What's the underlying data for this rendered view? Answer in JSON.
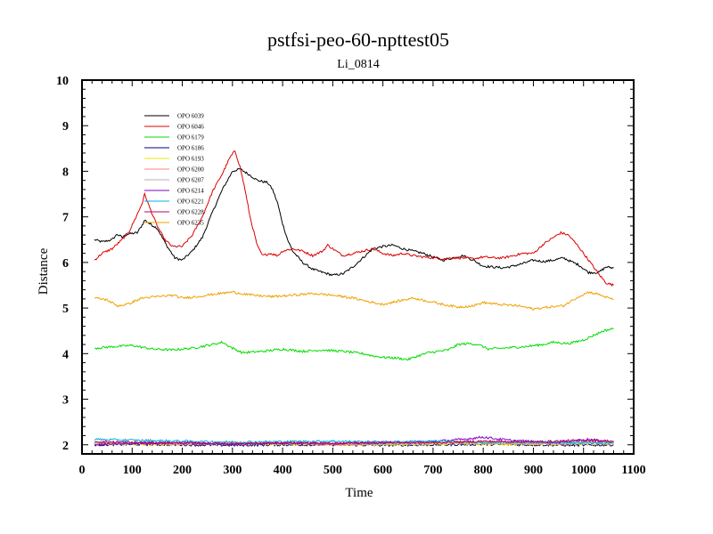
{
  "chart_data": {
    "type": "line",
    "title": "pstfsi-peo-60-npttest05",
    "subtitle": "Li_0814",
    "xlabel": "Time",
    "ylabel": "Distance",
    "xlim": [
      0,
      1100
    ],
    "ylim": [
      1.8,
      10
    ],
    "xticks": [
      0,
      100,
      200,
      300,
      400,
      500,
      600,
      700,
      800,
      900,
      1000,
      1100
    ],
    "yticks": [
      2,
      3,
      4,
      5,
      6,
      7,
      8,
      9,
      10
    ],
    "grid": false,
    "legend_position": "top-left",
    "series": [
      {
        "name": "OPO 6039",
        "color": "#000000",
        "points": [
          [
            25,
            6.5
          ],
          [
            40,
            6.45
          ],
          [
            60,
            6.5
          ],
          [
            70,
            6.62
          ],
          [
            80,
            6.55
          ],
          [
            90,
            6.62
          ],
          [
            110,
            6.65
          ],
          [
            120,
            6.82
          ],
          [
            125,
            6.93
          ],
          [
            135,
            6.85
          ],
          [
            150,
            6.75
          ],
          [
            170,
            6.35
          ],
          [
            185,
            6.1
          ],
          [
            200,
            6.05
          ],
          [
            220,
            6.25
          ],
          [
            240,
            6.55
          ],
          [
            260,
            7.1
          ],
          [
            280,
            7.6
          ],
          [
            300,
            8.0
          ],
          [
            315,
            8.05
          ],
          [
            330,
            7.95
          ],
          [
            350,
            7.8
          ],
          [
            370,
            7.75
          ],
          [
            380,
            7.6
          ],
          [
            390,
            7.3
          ],
          [
            400,
            6.85
          ],
          [
            410,
            6.5
          ],
          [
            420,
            6.25
          ],
          [
            440,
            6.0
          ],
          [
            460,
            5.85
          ],
          [
            480,
            5.78
          ],
          [
            500,
            5.72
          ],
          [
            520,
            5.75
          ],
          [
            540,
            5.9
          ],
          [
            560,
            6.1
          ],
          [
            580,
            6.3
          ],
          [
            600,
            6.35
          ],
          [
            620,
            6.38
          ],
          [
            640,
            6.3
          ],
          [
            660,
            6.25
          ],
          [
            680,
            6.2
          ],
          [
            700,
            6.12
          ],
          [
            720,
            6.05
          ],
          [
            740,
            6.1
          ],
          [
            760,
            6.15
          ],
          [
            780,
            6.05
          ],
          [
            800,
            5.92
          ],
          [
            820,
            5.9
          ],
          [
            840,
            5.88
          ],
          [
            860,
            5.92
          ],
          [
            880,
            5.98
          ],
          [
            900,
            6.05
          ],
          [
            920,
            6.02
          ],
          [
            940,
            6.05
          ],
          [
            960,
            6.1
          ],
          [
            975,
            6.02
          ],
          [
            990,
            5.95
          ],
          [
            1010,
            5.78
          ],
          [
            1030,
            5.78
          ],
          [
            1045,
            5.9
          ],
          [
            1060,
            5.88
          ]
        ]
      },
      {
        "name": "OPO 6046",
        "color": "#dd0000",
        "points": [
          [
            25,
            6.05
          ],
          [
            40,
            6.2
          ],
          [
            60,
            6.3
          ],
          [
            80,
            6.5
          ],
          [
            95,
            6.7
          ],
          [
            110,
            7.05
          ],
          [
            120,
            7.3
          ],
          [
            125,
            7.5
          ],
          [
            135,
            7.2
          ],
          [
            150,
            6.8
          ],
          [
            165,
            6.5
          ],
          [
            180,
            6.35
          ],
          [
            200,
            6.35
          ],
          [
            220,
            6.6
          ],
          [
            240,
            7.0
          ],
          [
            260,
            7.55
          ],
          [
            280,
            7.95
          ],
          [
            295,
            8.3
          ],
          [
            305,
            8.45
          ],
          [
            315,
            8.1
          ],
          [
            325,
            7.6
          ],
          [
            335,
            7.0
          ],
          [
            350,
            6.35
          ],
          [
            360,
            6.15
          ],
          [
            375,
            6.2
          ],
          [
            390,
            6.15
          ],
          [
            400,
            6.25
          ],
          [
            420,
            6.3
          ],
          [
            440,
            6.25
          ],
          [
            460,
            6.15
          ],
          [
            480,
            6.25
          ],
          [
            490,
            6.38
          ],
          [
            500,
            6.3
          ],
          [
            520,
            6.15
          ],
          [
            540,
            6.2
          ],
          [
            560,
            6.25
          ],
          [
            580,
            6.3
          ],
          [
            600,
            6.2
          ],
          [
            620,
            6.15
          ],
          [
            640,
            6.2
          ],
          [
            660,
            6.15
          ],
          [
            680,
            6.12
          ],
          [
            700,
            6.1
          ],
          [
            720,
            6.08
          ],
          [
            740,
            6.1
          ],
          [
            760,
            6.1
          ],
          [
            780,
            6.08
          ],
          [
            800,
            6.12
          ],
          [
            820,
            6.1
          ],
          [
            840,
            6.1
          ],
          [
            860,
            6.15
          ],
          [
            880,
            6.2
          ],
          [
            900,
            6.2
          ],
          [
            920,
            6.4
          ],
          [
            940,
            6.55
          ],
          [
            955,
            6.65
          ],
          [
            970,
            6.6
          ],
          [
            990,
            6.35
          ],
          [
            1010,
            6.05
          ],
          [
            1030,
            5.75
          ],
          [
            1045,
            5.55
          ],
          [
            1060,
            5.5
          ]
        ]
      },
      {
        "name": "OPO 6179",
        "color": "#00dd00",
        "points": [
          [
            25,
            4.12
          ],
          [
            60,
            4.15
          ],
          [
            100,
            4.18
          ],
          [
            140,
            4.1
          ],
          [
            180,
            4.08
          ],
          [
            220,
            4.12
          ],
          [
            260,
            4.2
          ],
          [
            280,
            4.25
          ],
          [
            300,
            4.12
          ],
          [
            320,
            4.02
          ],
          [
            360,
            4.05
          ],
          [
            400,
            4.1
          ],
          [
            440,
            4.05
          ],
          [
            480,
            4.08
          ],
          [
            520,
            4.05
          ],
          [
            560,
            4.0
          ],
          [
            580,
            3.95
          ],
          [
            600,
            3.92
          ],
          [
            630,
            3.9
          ],
          [
            650,
            3.87
          ],
          [
            670,
            3.95
          ],
          [
            690,
            4.02
          ],
          [
            710,
            4.05
          ],
          [
            730,
            4.08
          ],
          [
            750,
            4.2
          ],
          [
            770,
            4.22
          ],
          [
            790,
            4.2
          ],
          [
            810,
            4.1
          ],
          [
            840,
            4.12
          ],
          [
            880,
            4.15
          ],
          [
            920,
            4.2
          ],
          [
            940,
            4.25
          ],
          [
            970,
            4.22
          ],
          [
            1000,
            4.3
          ],
          [
            1020,
            4.4
          ],
          [
            1040,
            4.5
          ],
          [
            1060,
            4.55
          ]
        ]
      },
      {
        "name": "OPO 6186",
        "color": "#000080",
        "points": [
          [
            25,
            2.0
          ],
          [
            100,
            2.01
          ],
          [
            200,
            2.0
          ],
          [
            300,
            1.99
          ],
          [
            400,
            2.0
          ],
          [
            500,
            2.0
          ],
          [
            600,
            1.99
          ],
          [
            700,
            2.0
          ],
          [
            800,
            2.01
          ],
          [
            900,
            2.0
          ],
          [
            1000,
            1.99
          ],
          [
            1060,
            2.0
          ]
        ]
      },
      {
        "name": "OPO 6193",
        "color": "#e8e800",
        "points": [
          [
            25,
            2.02
          ],
          [
            150,
            2.01
          ],
          [
            300,
            2.03
          ],
          [
            450,
            2.01
          ],
          [
            600,
            2.0
          ],
          [
            750,
            2.02
          ],
          [
            900,
            2.01
          ],
          [
            1060,
            2.02
          ]
        ]
      },
      {
        "name": "OPO 6200",
        "color": "#ff8080",
        "points": [
          [
            25,
            2.05
          ],
          [
            100,
            2.04
          ],
          [
            200,
            2.02
          ],
          [
            300,
            2.04
          ],
          [
            400,
            2.03
          ],
          [
            500,
            2.01
          ],
          [
            600,
            2.03
          ],
          [
            700,
            2.05
          ],
          [
            800,
            2.04
          ],
          [
            900,
            2.03
          ],
          [
            1000,
            2.04
          ],
          [
            1060,
            2.03
          ]
        ]
      },
      {
        "name": "OPO 6207",
        "color": "#b0b0b0",
        "points": [
          [
            25,
            2.03
          ],
          [
            150,
            2.05
          ],
          [
            300,
            2.02
          ],
          [
            450,
            2.04
          ],
          [
            600,
            2.02
          ],
          [
            750,
            2.06
          ],
          [
            900,
            2.03
          ],
          [
            1060,
            2.05
          ]
        ]
      },
      {
        "name": "OPO 6214",
        "color": "#8000c0",
        "points": [
          [
            25,
            2.0
          ],
          [
            100,
            2.03
          ],
          [
            200,
            2.05
          ],
          [
            300,
            2.02
          ],
          [
            400,
            2.04
          ],
          [
            500,
            2.03
          ],
          [
            600,
            2.05
          ],
          [
            700,
            2.07
          ],
          [
            760,
            2.12
          ],
          [
            800,
            2.17
          ],
          [
            850,
            2.1
          ],
          [
            900,
            2.07
          ],
          [
            950,
            2.05
          ],
          [
            1010,
            2.12
          ],
          [
            1040,
            2.08
          ],
          [
            1060,
            2.06
          ]
        ]
      },
      {
        "name": "OPO 6221",
        "color": "#00b0e0",
        "points": [
          [
            25,
            2.12
          ],
          [
            100,
            2.1
          ],
          [
            200,
            2.08
          ],
          [
            300,
            2.06
          ],
          [
            400,
            2.07
          ],
          [
            500,
            2.08
          ],
          [
            600,
            2.06
          ],
          [
            700,
            2.08
          ],
          [
            800,
            2.05
          ],
          [
            900,
            2.06
          ],
          [
            1000,
            2.05
          ],
          [
            1060,
            2.04
          ]
        ]
      },
      {
        "name": "OPO 6228",
        "color": "#c00060",
        "points": [
          [
            25,
            2.07
          ],
          [
            100,
            2.05
          ],
          [
            200,
            2.04
          ],
          [
            300,
            2.02
          ],
          [
            400,
            2.04
          ],
          [
            500,
            2.03
          ],
          [
            600,
            2.05
          ],
          [
            700,
            2.04
          ],
          [
            800,
            2.08
          ],
          [
            900,
            2.06
          ],
          [
            1000,
            2.1
          ],
          [
            1060,
            2.08
          ]
        ]
      },
      {
        "name": "OPO 6235",
        "color": "#f0a000",
        "points": [
          [
            25,
            5.22
          ],
          [
            50,
            5.18
          ],
          [
            70,
            5.05
          ],
          [
            90,
            5.08
          ],
          [
            120,
            5.22
          ],
          [
            150,
            5.25
          ],
          [
            180,
            5.28
          ],
          [
            200,
            5.22
          ],
          [
            230,
            5.25
          ],
          [
            260,
            5.3
          ],
          [
            300,
            5.35
          ],
          [
            340,
            5.28
          ],
          [
            380,
            5.25
          ],
          [
            420,
            5.28
          ],
          [
            460,
            5.32
          ],
          [
            500,
            5.28
          ],
          [
            540,
            5.22
          ],
          [
            580,
            5.12
          ],
          [
            600,
            5.08
          ],
          [
            630,
            5.15
          ],
          [
            660,
            5.22
          ],
          [
            690,
            5.15
          ],
          [
            720,
            5.08
          ],
          [
            750,
            5.02
          ],
          [
            780,
            5.05
          ],
          [
            800,
            5.12
          ],
          [
            830,
            5.08
          ],
          [
            870,
            5.05
          ],
          [
            900,
            4.98
          ],
          [
            930,
            5.02
          ],
          [
            960,
            5.05
          ],
          [
            990,
            5.25
          ],
          [
            1010,
            5.35
          ],
          [
            1030,
            5.3
          ],
          [
            1060,
            5.18
          ]
        ]
      }
    ]
  }
}
